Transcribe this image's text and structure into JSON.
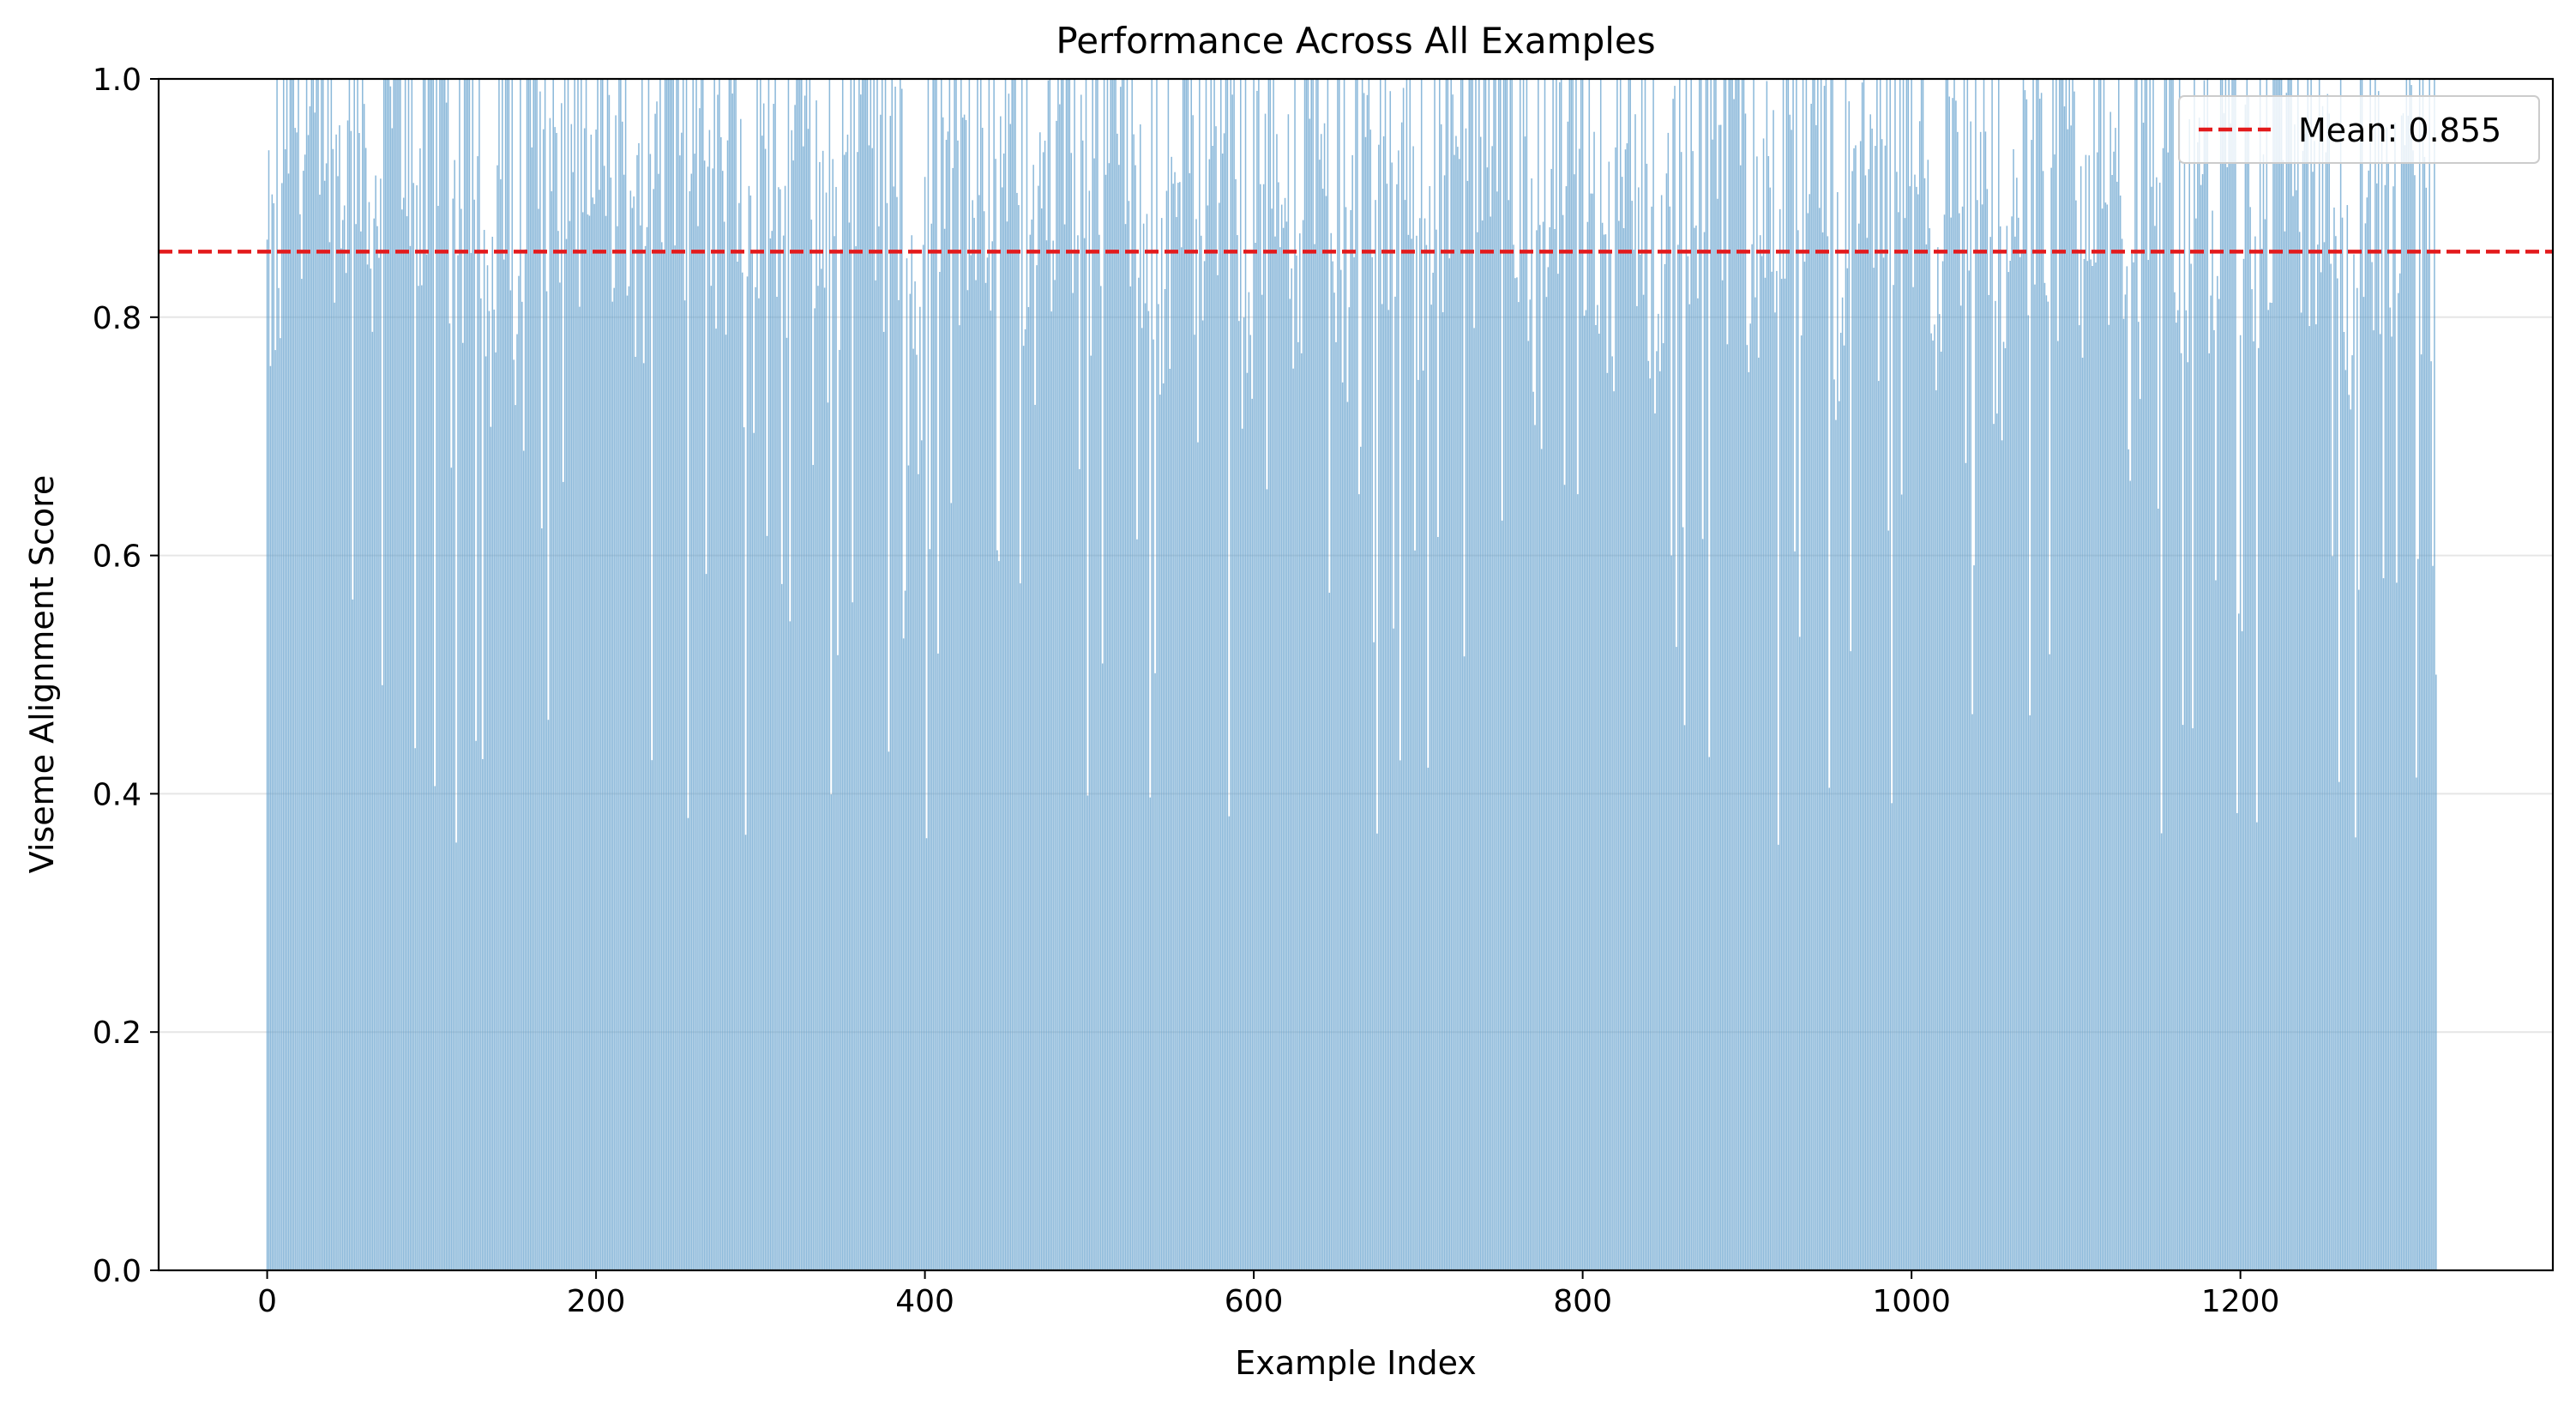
{
  "chart_data": {
    "type": "bar",
    "title": "Performance Across All Examples",
    "xlabel": "Example Index",
    "ylabel": "Viseme Alignment Score",
    "xlim": [
      -66,
      1390
    ],
    "ylim": [
      0,
      1.0
    ],
    "xticks": [
      0,
      200,
      400,
      600,
      800,
      1000,
      1200
    ],
    "xtick_labels": [
      "0",
      "200",
      "400",
      "600",
      "800",
      "1000",
      "1200"
    ],
    "yticks": [
      0.0,
      0.2,
      0.4,
      0.6,
      0.8,
      1.0
    ],
    "ytick_labels": [
      "0.0",
      "0.2",
      "0.4",
      "0.6",
      "0.8",
      "1.0"
    ],
    "grid": "horizontal",
    "legend": {
      "position": "top-right",
      "entries": [
        {
          "label": "Mean: 0.855",
          "style": "dashed-line",
          "color": "#e31a1c"
        }
      ]
    },
    "mean_line": {
      "value": 0.855,
      "color": "#e31a1c"
    },
    "bar_color": "#5b9bcb",
    "series": [
      {
        "x_start": 0,
        "count": 1320,
        "note_values_sample_each_10": [
          0.82,
          0.97,
          0.93,
          0.96,
          0.91,
          0.95,
          0.88,
          0.99,
          0.94,
          0.9,
          0.97,
          0.86,
          0.95,
          0.8,
          0.92,
          0.78,
          0.96,
          0.88,
          0.93,
          0.84,
          0.97,
          0.9,
          0.86,
          0.95,
          0.83,
          0.91,
          0.97,
          0.88,
          0.92,
          0.79,
          0.95,
          0.87,
          0.96,
          0.9,
          0.82,
          0.94,
          0.98,
          0.86,
          0.89,
          0.76,
          0.93,
          0.97,
          0.85,
          0.91,
          0.88,
          0.95,
          0.81,
          0.9,
          0.96,
          0.87,
          0.84,
          0.99,
          0.92,
          0.88,
          0.8,
          0.95,
          0.86,
          0.93,
          0.97,
          0.78,
          0.9,
          0.94,
          0.85,
          0.96,
          0.88,
          0.82,
          0.93,
          0.91,
          0.87,
          0.95,
          0.8,
          0.9,
          0.97,
          0.84,
          0.89,
          0.93,
          0.86,
          0.76,
          0.92,
          0.95,
          0.88,
          0.83,
          0.96,
          0.9,
          0.79,
          0.94,
          0.87,
          0.91,
          0.85,
          0.97,
          0.82,
          0.9,
          0.93,
          0.86,
          0.95,
          0.8,
          0.88,
          0.92,
          0.84,
          0.96,
          0.89,
          0.83,
          0.95,
          0.87,
          0.91,
          0.78,
          0.94,
          0.9,
          0.86,
          0.97,
          0.82,
          0.93,
          0.88,
          0.75,
          0.92,
          0.95,
          0.85,
          0.9,
          0.8,
          0.94,
          0.87,
          0.83,
          0.96,
          0.89,
          0.85,
          0.93,
          0.79,
          0.91,
          0.88,
          0.86,
          0.95,
          0.82
        ],
        "values": []
      }
    ]
  }
}
